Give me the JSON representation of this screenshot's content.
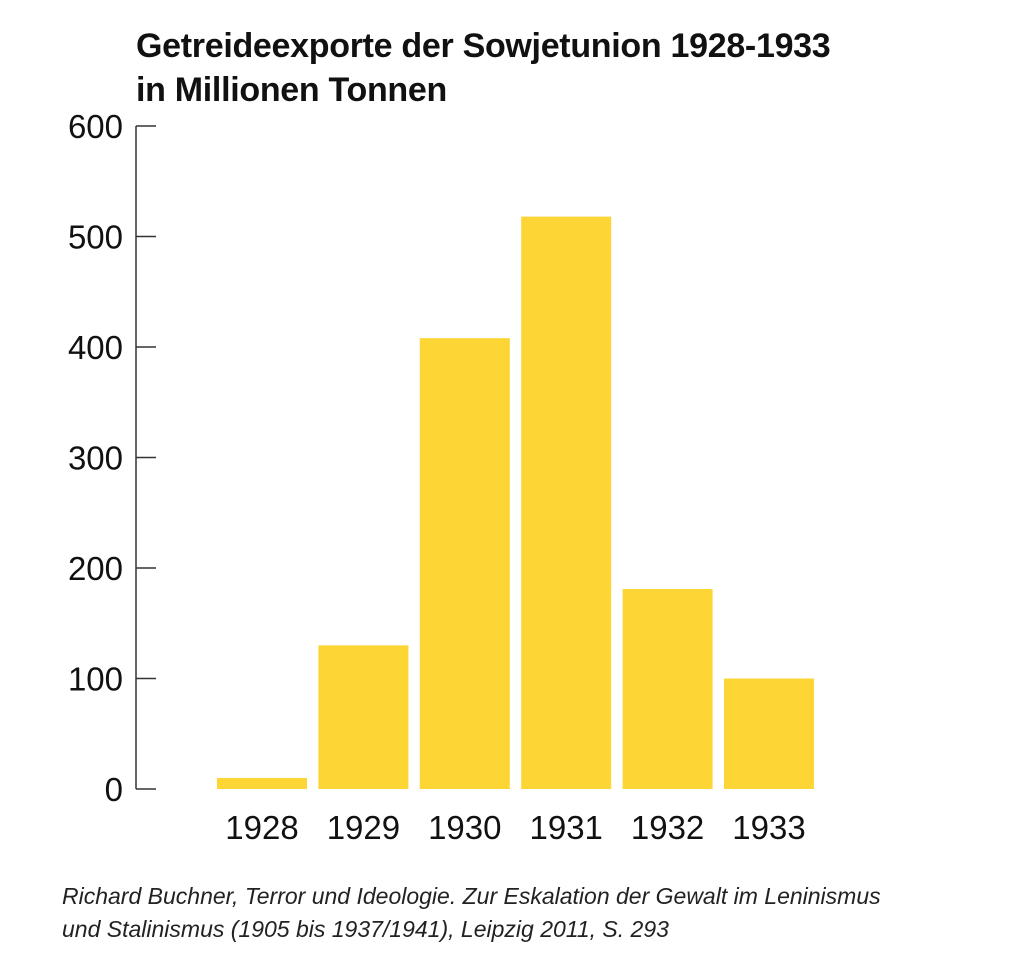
{
  "chart_data": {
    "type": "bar",
    "title": "Getreideexporte der Sowjetunion 1928-1933",
    "subtitle": "in Millionen Tonnen",
    "categories": [
      "1928",
      "1929",
      "1930",
      "1931",
      "1932",
      "1933"
    ],
    "values": [
      10,
      130,
      408,
      518,
      181,
      100
    ],
    "yticks": [
      "0",
      "100",
      "200",
      "300",
      "400",
      "500",
      "600"
    ],
    "ylim": [
      0,
      600
    ],
    "xlabel": "",
    "ylabel": "",
    "grid": false,
    "bar_color": "#fdd535",
    "axis_color": "#333333"
  },
  "source": {
    "line1": "Richard Buchner, Terror und Ideologie. Zur Eskalation der Gewalt im Leninismus",
    "line2": "und Stalinismus (1905 bis 1937/1941), Leipzig 2011, S. 293"
  }
}
